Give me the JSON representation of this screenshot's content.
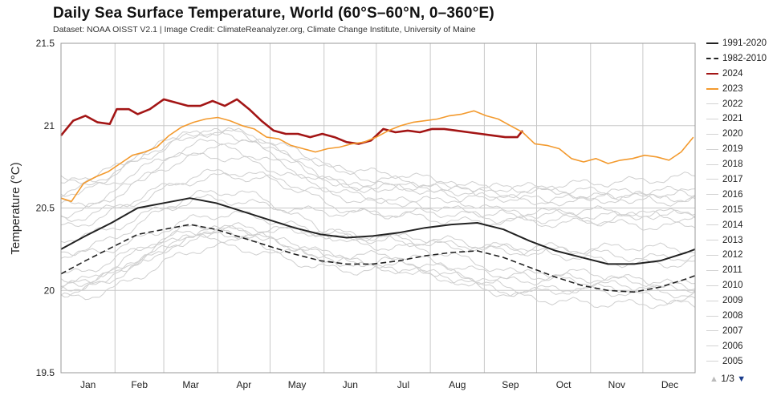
{
  "title": "Daily Sea Surface Temperature, World (60°S–60°N, 0–360°E)",
  "subtitle": "Dataset: NOAA OISST V2.1 | Image Credit: ClimateReanalyzer.org, Climate Change Institute, University of Maine",
  "pager": {
    "up_icon": "triangle-up-icon",
    "text": "1/3",
    "down_icon": "triangle-down-icon"
  },
  "chart_data": {
    "type": "line",
    "ylabel": "Temperature (°C)",
    "xlabel": "",
    "ylim": [
      19.5,
      21.5
    ],
    "yticks": [
      19.5,
      20,
      20.5,
      21,
      21.5
    ],
    "ytick_labels": [
      "19.5",
      "20",
      "20.5",
      "21",
      "21.5"
    ],
    "xlim": [
      1,
      365
    ],
    "months": [
      "Jan",
      "Feb",
      "Mar",
      "Apr",
      "May",
      "Jun",
      "Jul",
      "Aug",
      "Sep",
      "Oct",
      "Nov",
      "Dec"
    ],
    "grid": true,
    "legend_position": "right",
    "series": [
      {
        "name": "1991-2020",
        "color": "#222222",
        "dash": "solid",
        "width": 2,
        "points": [
          [
            1,
            20.25
          ],
          [
            15,
            20.33
          ],
          [
            30,
            20.41
          ],
          [
            45,
            20.5
          ],
          [
            60,
            20.53
          ],
          [
            75,
            20.56
          ],
          [
            90,
            20.53
          ],
          [
            105,
            20.48
          ],
          [
            120,
            20.43
          ],
          [
            135,
            20.38
          ],
          [
            150,
            20.34
          ],
          [
            165,
            20.32
          ],
          [
            180,
            20.33
          ],
          [
            195,
            20.35
          ],
          [
            210,
            20.38
          ],
          [
            225,
            20.4
          ],
          [
            240,
            20.41
          ],
          [
            255,
            20.37
          ],
          [
            270,
            20.3
          ],
          [
            285,
            20.24
          ],
          [
            300,
            20.2
          ],
          [
            315,
            20.16
          ],
          [
            330,
            20.16
          ],
          [
            345,
            20.18
          ],
          [
            360,
            20.23
          ],
          [
            365,
            20.25
          ]
        ]
      },
      {
        "name": "1982-2010",
        "color": "#222222",
        "dash": "dashed",
        "width": 1.6,
        "points": [
          [
            1,
            20.1
          ],
          [
            15,
            20.18
          ],
          [
            30,
            20.26
          ],
          [
            45,
            20.34
          ],
          [
            60,
            20.37
          ],
          [
            75,
            20.4
          ],
          [
            90,
            20.37
          ],
          [
            105,
            20.32
          ],
          [
            120,
            20.27
          ],
          [
            135,
            20.22
          ],
          [
            150,
            20.18
          ],
          [
            165,
            20.16
          ],
          [
            180,
            20.16
          ],
          [
            195,
            20.18
          ],
          [
            210,
            20.21
          ],
          [
            225,
            20.23
          ],
          [
            240,
            20.24
          ],
          [
            255,
            20.2
          ],
          [
            270,
            20.14
          ],
          [
            285,
            20.08
          ],
          [
            300,
            20.03
          ],
          [
            315,
            20.0
          ],
          [
            330,
            19.99
          ],
          [
            345,
            20.02
          ],
          [
            360,
            20.07
          ],
          [
            365,
            20.09
          ]
        ]
      },
      {
        "name": "2024",
        "color": "#a31515",
        "dash": "solid",
        "width": 2.6,
        "points": [
          [
            1,
            20.94
          ],
          [
            8,
            21.03
          ],
          [
            15,
            21.06
          ],
          [
            22,
            21.02
          ],
          [
            29,
            21.01
          ],
          [
            33,
            21.1
          ],
          [
            40,
            21.1
          ],
          [
            45,
            21.07
          ],
          [
            52,
            21.1
          ],
          [
            60,
            21.16
          ],
          [
            67,
            21.14
          ],
          [
            74,
            21.12
          ],
          [
            81,
            21.12
          ],
          [
            88,
            21.15
          ],
          [
            95,
            21.12
          ],
          [
            102,
            21.16
          ],
          [
            109,
            21.1
          ],
          [
            116,
            21.03
          ],
          [
            123,
            20.97
          ],
          [
            130,
            20.95
          ],
          [
            137,
            20.95
          ],
          [
            144,
            20.93
          ],
          [
            151,
            20.95
          ],
          [
            158,
            20.93
          ],
          [
            165,
            20.9
          ],
          [
            172,
            20.89
          ],
          [
            179,
            20.91
          ],
          [
            186,
            20.98
          ],
          [
            193,
            20.96
          ],
          [
            200,
            20.97
          ],
          [
            207,
            20.96
          ],
          [
            214,
            20.98
          ],
          [
            221,
            20.98
          ],
          [
            228,
            20.97
          ],
          [
            235,
            20.96
          ],
          [
            242,
            20.95
          ],
          [
            249,
            20.94
          ],
          [
            256,
            20.93
          ],
          [
            263,
            20.93
          ],
          [
            266,
            20.97
          ]
        ]
      },
      {
        "name": "2023",
        "color": "#f39a2e",
        "dash": "solid",
        "width": 1.6,
        "points": [
          [
            1,
            20.56
          ],
          [
            7,
            20.54
          ],
          [
            14,
            20.65
          ],
          [
            21,
            20.69
          ],
          [
            28,
            20.72
          ],
          [
            35,
            20.77
          ],
          [
            42,
            20.82
          ],
          [
            49,
            20.84
          ],
          [
            56,
            20.87
          ],
          [
            63,
            20.94
          ],
          [
            70,
            20.99
          ],
          [
            77,
            21.02
          ],
          [
            84,
            21.04
          ],
          [
            91,
            21.05
          ],
          [
            98,
            21.03
          ],
          [
            105,
            21.0
          ],
          [
            112,
            20.98
          ],
          [
            119,
            20.93
          ],
          [
            126,
            20.92
          ],
          [
            133,
            20.88
          ],
          [
            140,
            20.86
          ],
          [
            147,
            20.84
          ],
          [
            154,
            20.86
          ],
          [
            161,
            20.87
          ],
          [
            168,
            20.89
          ],
          [
            175,
            20.9
          ],
          [
            182,
            20.93
          ],
          [
            189,
            20.97
          ],
          [
            196,
            21.0
          ],
          [
            203,
            21.02
          ],
          [
            210,
            21.03
          ],
          [
            217,
            21.04
          ],
          [
            224,
            21.06
          ],
          [
            231,
            21.07
          ],
          [
            238,
            21.09
          ],
          [
            245,
            21.06
          ],
          [
            252,
            21.04
          ],
          [
            259,
            21.0
          ],
          [
            266,
            20.96
          ],
          [
            273,
            20.89
          ],
          [
            280,
            20.88
          ],
          [
            287,
            20.86
          ],
          [
            294,
            20.8
          ],
          [
            301,
            20.78
          ],
          [
            308,
            20.8
          ],
          [
            315,
            20.77
          ],
          [
            322,
            20.79
          ],
          [
            329,
            20.8
          ],
          [
            336,
            20.82
          ],
          [
            343,
            20.81
          ],
          [
            350,
            20.79
          ],
          [
            357,
            20.84
          ],
          [
            364,
            20.93
          ]
        ]
      }
    ],
    "legend_entries": [
      {
        "name": "1991-2020",
        "color": "#222222",
        "dash": "solid"
      },
      {
        "name": "1982-2010",
        "color": "#222222",
        "dash": "dashed"
      },
      {
        "name": "2024",
        "color": "#a31515",
        "dash": "solid"
      },
      {
        "name": "2023",
        "color": "#f39a2e",
        "dash": "solid"
      },
      {
        "name": "2022",
        "color": "#d3d3d3",
        "dash": "solid"
      },
      {
        "name": "2021",
        "color": "#d3d3d3",
        "dash": "solid"
      },
      {
        "name": "2020",
        "color": "#d3d3d3",
        "dash": "solid"
      },
      {
        "name": "2019",
        "color": "#d3d3d3",
        "dash": "solid"
      },
      {
        "name": "2018",
        "color": "#d3d3d3",
        "dash": "solid"
      },
      {
        "name": "2017",
        "color": "#d3d3d3",
        "dash": "solid"
      },
      {
        "name": "2016",
        "color": "#d3d3d3",
        "dash": "solid"
      },
      {
        "name": "2015",
        "color": "#d3d3d3",
        "dash": "solid"
      },
      {
        "name": "2014",
        "color": "#d3d3d3",
        "dash": "solid"
      },
      {
        "name": "2013",
        "color": "#d3d3d3",
        "dash": "solid"
      },
      {
        "name": "2012",
        "color": "#d3d3d3",
        "dash": "solid"
      },
      {
        "name": "2011",
        "color": "#d3d3d3",
        "dash": "solid"
      },
      {
        "name": "2010",
        "color": "#d3d3d3",
        "dash": "solid"
      },
      {
        "name": "2009",
        "color": "#d3d3d3",
        "dash": "solid"
      },
      {
        "name": "2008",
        "color": "#d3d3d3",
        "dash": "solid"
      },
      {
        "name": "2007",
        "color": "#d3d3d3",
        "dash": "solid"
      },
      {
        "name": "2006",
        "color": "#d3d3d3",
        "dash": "solid"
      },
      {
        "name": "2005",
        "color": "#d3d3d3",
        "dash": "solid"
      }
    ],
    "background_years": [
      {
        "name": "2022",
        "points": [
          [
            1,
            20.68
          ],
          [
            91,
            20.95
          ],
          [
            182,
            20.7
          ],
          [
            273,
            20.62
          ],
          [
            365,
            20.7
          ]
        ]
      },
      {
        "name": "2021",
        "points": [
          [
            1,
            20.58
          ],
          [
            91,
            20.9
          ],
          [
            182,
            20.63
          ],
          [
            273,
            20.56
          ],
          [
            365,
            20.6
          ]
        ]
      },
      {
        "name": "2020",
        "points": [
          [
            1,
            20.6
          ],
          [
            91,
            20.98
          ],
          [
            182,
            20.68
          ],
          [
            273,
            20.6
          ],
          [
            365,
            20.55
          ]
        ]
      },
      {
        "name": "2019",
        "points": [
          [
            1,
            20.52
          ],
          [
            91,
            20.85
          ],
          [
            182,
            20.62
          ],
          [
            273,
            20.6
          ],
          [
            365,
            20.55
          ]
        ]
      },
      {
        "name": "2018",
        "points": [
          [
            1,
            20.42
          ],
          [
            91,
            20.72
          ],
          [
            182,
            20.48
          ],
          [
            273,
            20.42
          ],
          [
            365,
            20.45
          ]
        ]
      },
      {
        "name": "2017",
        "points": [
          [
            1,
            20.48
          ],
          [
            91,
            20.82
          ],
          [
            182,
            20.55
          ],
          [
            273,
            20.45
          ],
          [
            365,
            20.48
          ]
        ]
      },
      {
        "name": "2016",
        "points": [
          [
            1,
            20.65
          ],
          [
            91,
            20.95
          ],
          [
            182,
            20.62
          ],
          [
            273,
            20.48
          ],
          [
            365,
            20.45
          ]
        ]
      },
      {
        "name": "2015",
        "points": [
          [
            1,
            20.38
          ],
          [
            91,
            20.7
          ],
          [
            182,
            20.55
          ],
          [
            273,
            20.55
          ],
          [
            365,
            20.58
          ]
        ]
      },
      {
        "name": "2014",
        "points": [
          [
            1,
            20.25
          ],
          [
            91,
            20.55
          ],
          [
            182,
            20.45
          ],
          [
            273,
            20.42
          ],
          [
            365,
            20.4
          ]
        ]
      },
      {
        "name": "2013",
        "points": [
          [
            1,
            20.2
          ],
          [
            91,
            20.45
          ],
          [
            182,
            20.32
          ],
          [
            273,
            20.25
          ],
          [
            365,
            20.25
          ]
        ]
      },
      {
        "name": "2012",
        "points": [
          [
            1,
            20.1
          ],
          [
            91,
            20.38
          ],
          [
            182,
            20.32
          ],
          [
            273,
            20.22
          ],
          [
            365,
            20.15
          ]
        ]
      },
      {
        "name": "2011",
        "points": [
          [
            1,
            20.05
          ],
          [
            91,
            20.35
          ],
          [
            182,
            20.2
          ],
          [
            273,
            20.1
          ],
          [
            365,
            20.05
          ]
        ]
      },
      {
        "name": "2010",
        "points": [
          [
            1,
            20.3
          ],
          [
            91,
            20.6
          ],
          [
            182,
            20.28
          ],
          [
            273,
            20.1
          ],
          [
            365,
            20.02
          ]
        ]
      },
      {
        "name": "2009",
        "points": [
          [
            1,
            20.05
          ],
          [
            91,
            20.4
          ],
          [
            182,
            20.32
          ],
          [
            273,
            20.25
          ],
          [
            365,
            20.2
          ]
        ]
      },
      {
        "name": "2008",
        "points": [
          [
            1,
            19.95
          ],
          [
            91,
            20.25
          ],
          [
            182,
            20.12
          ],
          [
            273,
            20.0
          ],
          [
            365,
            19.95
          ]
        ]
      },
      {
        "name": "2007",
        "points": [
          [
            1,
            20.0
          ],
          [
            91,
            20.35
          ],
          [
            182,
            20.15
          ],
          [
            273,
            19.95
          ],
          [
            365,
            19.9
          ]
        ]
      },
      {
        "name": "2006",
        "points": [
          [
            1,
            20.0
          ],
          [
            91,
            20.32
          ],
          [
            182,
            20.15
          ],
          [
            273,
            20.05
          ],
          [
            365,
            20.02
          ]
        ]
      },
      {
        "name": "2005",
        "points": [
          [
            1,
            20.02
          ],
          [
            91,
            20.35
          ],
          [
            182,
            20.18
          ],
          [
            273,
            20.02
          ],
          [
            365,
            19.98
          ]
        ]
      }
    ]
  }
}
